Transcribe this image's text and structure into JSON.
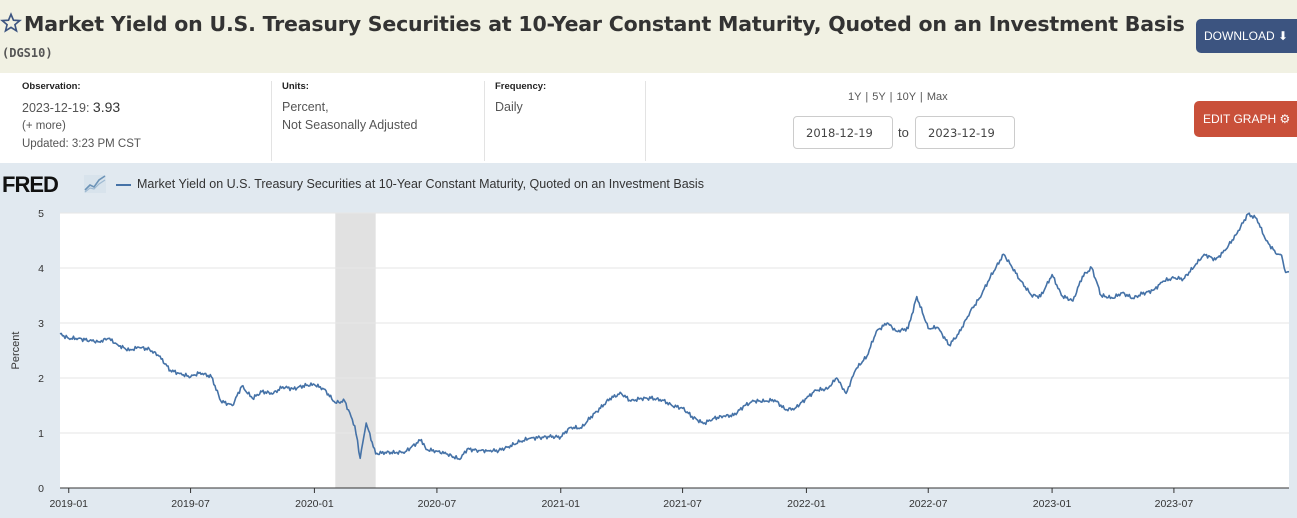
{
  "header": {
    "title": "Market Yield on U.S. Treasury Securities at 10-Year Constant Maturity, Quoted on an Investment Basis",
    "series_id": "(DGS10)",
    "download_label": "DOWNLOAD",
    "background": "#f1f1e3"
  },
  "meta": {
    "observation_label": "Observation:",
    "observation_date": "2023-12-19:",
    "observation_value": "3.93",
    "more_link": "(+ more)",
    "updated": "Updated: 3:23 PM CST",
    "units_label": "Units:",
    "units_line1": "Percent,",
    "units_line2": "Not Seasonally Adjusted",
    "frequency_label": "Frequency:",
    "frequency_value": "Daily"
  },
  "controls": {
    "range_links": [
      "1Y",
      "5Y",
      "10Y",
      "Max"
    ],
    "start_date": "2018-12-19",
    "to_label": "to",
    "end_date": "2023-12-19",
    "edit_label": "EDIT GRAPH",
    "edit_color": "#c9503a",
    "download_color": "#3c5480"
  },
  "chart_data": {
    "type": "line",
    "logo": "FRED",
    "legend": "Market Yield on U.S. Treasury Securities at 10-Year Constant Maturity, Quoted on an Investment Basis",
    "ylabel": "Percent",
    "ylim": [
      0,
      5
    ],
    "yticks": [
      0,
      1,
      2,
      3,
      4,
      5
    ],
    "xlim": [
      "2018-12-19",
      "2023-12-19"
    ],
    "xticks": [
      "2019-01",
      "2019-07",
      "2020-01",
      "2020-07",
      "2021-01",
      "2021-07",
      "2022-01",
      "2022-07",
      "2023-01",
      "2023-07"
    ],
    "recession": [
      "2020-02",
      "2020-04"
    ],
    "series_color": "#4572a7",
    "series": [
      {
        "name": "Market Yield on U.S. Treasury Securities at 10-Year Constant Maturity, Quoted on an Investment Basis",
        "points": [
          [
            "2018-12-19",
            2.8
          ],
          [
            "2019-01-01",
            2.72
          ],
          [
            "2019-01-15",
            2.72
          ],
          [
            "2019-02-01",
            2.68
          ],
          [
            "2019-02-15",
            2.66
          ],
          [
            "2019-03-01",
            2.72
          ],
          [
            "2019-03-15",
            2.6
          ],
          [
            "2019-04-01",
            2.5
          ],
          [
            "2019-04-15",
            2.56
          ],
          [
            "2019-05-01",
            2.52
          ],
          [
            "2019-05-15",
            2.4
          ],
          [
            "2019-06-01",
            2.14
          ],
          [
            "2019-06-15",
            2.08
          ],
          [
            "2019-07-01",
            2.02
          ],
          [
            "2019-07-15",
            2.1
          ],
          [
            "2019-08-01",
            2.02
          ],
          [
            "2019-08-15",
            1.58
          ],
          [
            "2019-09-01",
            1.5
          ],
          [
            "2019-09-15",
            1.85
          ],
          [
            "2019-10-01",
            1.63
          ],
          [
            "2019-10-15",
            1.75
          ],
          [
            "2019-11-01",
            1.72
          ],
          [
            "2019-11-15",
            1.84
          ],
          [
            "2019-12-01",
            1.8
          ],
          [
            "2019-12-15",
            1.86
          ],
          [
            "2020-01-01",
            1.88
          ],
          [
            "2020-01-15",
            1.8
          ],
          [
            "2020-02-01",
            1.55
          ],
          [
            "2020-02-15",
            1.58
          ],
          [
            "2020-03-01",
            1.13
          ],
          [
            "2020-03-09",
            0.54
          ],
          [
            "2020-03-18",
            1.18
          ],
          [
            "2020-04-01",
            0.62
          ],
          [
            "2020-04-15",
            0.65
          ],
          [
            "2020-05-01",
            0.64
          ],
          [
            "2020-05-15",
            0.66
          ],
          [
            "2020-06-08",
            0.88
          ],
          [
            "2020-06-15",
            0.7
          ],
          [
            "2020-07-01",
            0.67
          ],
          [
            "2020-07-15",
            0.62
          ],
          [
            "2020-08-04",
            0.52
          ],
          [
            "2020-08-15",
            0.71
          ],
          [
            "2020-09-01",
            0.68
          ],
          [
            "2020-09-15",
            0.68
          ],
          [
            "2020-10-01",
            0.68
          ],
          [
            "2020-10-15",
            0.75
          ],
          [
            "2020-11-01",
            0.84
          ],
          [
            "2020-11-15",
            0.9
          ],
          [
            "2020-12-01",
            0.92
          ],
          [
            "2020-12-15",
            0.93
          ],
          [
            "2021-01-01",
            0.93
          ],
          [
            "2021-01-15",
            1.1
          ],
          [
            "2021-02-01",
            1.09
          ],
          [
            "2021-02-15",
            1.3
          ],
          [
            "2021-03-01",
            1.45
          ],
          [
            "2021-03-15",
            1.63
          ],
          [
            "2021-04-01",
            1.72
          ],
          [
            "2021-04-15",
            1.58
          ],
          [
            "2021-05-01",
            1.63
          ],
          [
            "2021-05-15",
            1.63
          ],
          [
            "2021-06-01",
            1.6
          ],
          [
            "2021-06-15",
            1.5
          ],
          [
            "2021-07-01",
            1.45
          ],
          [
            "2021-07-15",
            1.3
          ],
          [
            "2021-08-01",
            1.17
          ],
          [
            "2021-08-15",
            1.26
          ],
          [
            "2021-09-01",
            1.31
          ],
          [
            "2021-09-15",
            1.32
          ],
          [
            "2021-10-01",
            1.5
          ],
          [
            "2021-10-15",
            1.58
          ],
          [
            "2021-11-01",
            1.58
          ],
          [
            "2021-11-15",
            1.6
          ],
          [
            "2021-12-01",
            1.42
          ],
          [
            "2021-12-15",
            1.45
          ],
          [
            "2022-01-01",
            1.63
          ],
          [
            "2022-01-15",
            1.78
          ],
          [
            "2022-02-01",
            1.8
          ],
          [
            "2022-02-15",
            2.0
          ],
          [
            "2022-03-01",
            1.72
          ],
          [
            "2022-03-15",
            2.15
          ],
          [
            "2022-04-01",
            2.4
          ],
          [
            "2022-04-15",
            2.85
          ],
          [
            "2022-05-01",
            3.0
          ],
          [
            "2022-05-15",
            2.85
          ],
          [
            "2022-06-01",
            2.9
          ],
          [
            "2022-06-14",
            3.48
          ],
          [
            "2022-07-01",
            2.9
          ],
          [
            "2022-07-15",
            2.92
          ],
          [
            "2022-08-01",
            2.6
          ],
          [
            "2022-08-15",
            2.8
          ],
          [
            "2022-09-01",
            3.2
          ],
          [
            "2022-09-15",
            3.45
          ],
          [
            "2022-10-01",
            3.83
          ],
          [
            "2022-10-21",
            4.25
          ],
          [
            "2022-11-01",
            4.05
          ],
          [
            "2022-11-15",
            3.77
          ],
          [
            "2022-12-01",
            3.51
          ],
          [
            "2022-12-15",
            3.48
          ],
          [
            "2023-01-01",
            3.88
          ],
          [
            "2023-01-15",
            3.5
          ],
          [
            "2023-02-01",
            3.4
          ],
          [
            "2023-02-15",
            3.85
          ],
          [
            "2023-03-01",
            4.0
          ],
          [
            "2023-03-15",
            3.5
          ],
          [
            "2023-04-01",
            3.45
          ],
          [
            "2023-04-15",
            3.55
          ],
          [
            "2023-05-01",
            3.45
          ],
          [
            "2023-05-15",
            3.53
          ],
          [
            "2023-06-01",
            3.6
          ],
          [
            "2023-06-15",
            3.76
          ],
          [
            "2023-07-01",
            3.82
          ],
          [
            "2023-07-15",
            3.8
          ],
          [
            "2023-08-01",
            4.04
          ],
          [
            "2023-08-15",
            4.25
          ],
          [
            "2023-09-01",
            4.15
          ],
          [
            "2023-09-15",
            4.32
          ],
          [
            "2023-10-01",
            4.6
          ],
          [
            "2023-10-19",
            4.98
          ],
          [
            "2023-11-01",
            4.9
          ],
          [
            "2023-11-15",
            4.5
          ],
          [
            "2023-12-01",
            4.25
          ],
          [
            "2023-12-08",
            4.23
          ],
          [
            "2023-12-14",
            3.92
          ],
          [
            "2023-12-19",
            3.93
          ]
        ]
      }
    ]
  }
}
